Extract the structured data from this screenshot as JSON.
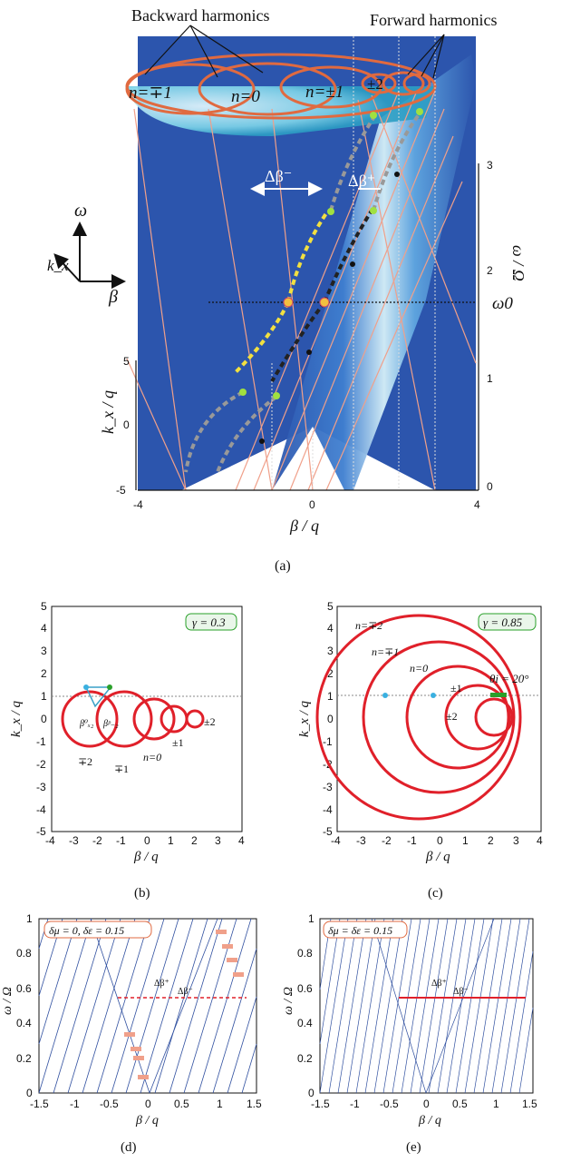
{
  "figure": {
    "panel_a": {
      "caption": "(a)",
      "top_labels": {
        "backward": "Backward harmonics",
        "forward": "Forward harmonics"
      },
      "ellipse_labels": [
        "n=∓1",
        "n=0",
        "n=±1",
        "±2"
      ],
      "delta_minus": "Δβ⁻",
      "delta_plus": "Δβ⁺",
      "axes_labels": {
        "omega": "ω",
        "kx": "k_x",
        "beta": "β"
      },
      "omega0_label": "ω0",
      "left_axis_label": "k_x / q",
      "right_axis_label": "ω / Ω",
      "bottom_axis_label": "β / q",
      "left_ticks": [
        "5",
        "0",
        "-5"
      ],
      "right_ticks": [
        "3",
        "2",
        "1",
        "0"
      ],
      "bottom_ticks": [
        "-4",
        "0",
        "4"
      ]
    },
    "panel_b": {
      "caption": "(b)",
      "gamma_label": "γ = 0.3",
      "x_label": "β / q",
      "y_label": "k_x / q",
      "x_ticks": [
        "-4",
        "-3",
        "-2",
        "-1",
        "0",
        "1",
        "2",
        "3",
        "4"
      ],
      "y_ticks": [
        "5",
        "4",
        "3",
        "2",
        "1",
        "0",
        "-1",
        "-2",
        "-3",
        "-4",
        "-5"
      ],
      "harmonic_labels": [
        "∓2",
        "∓1",
        "n=0",
        "±1",
        "±2"
      ],
      "beta_labels": [
        "β⁰ₓ₂",
        "βᵖ₋₂"
      ]
    },
    "panel_c": {
      "caption": "(c)",
      "gamma_label": "γ = 0.85",
      "x_label": "β / q",
      "y_label": "k_x / q",
      "x_ticks": [
        "-4",
        "-3",
        "-2",
        "-1",
        "0",
        "1",
        "2",
        "3",
        "4"
      ],
      "y_ticks": [
        "5",
        "4",
        "3",
        "2",
        "1",
        "0",
        "-1",
        "-2",
        "-3",
        "-4",
        "-5"
      ],
      "harmonic_labels": [
        "n=∓2",
        "n=∓1",
        "n=0",
        "±1",
        "±2"
      ],
      "theta_label": "θi = 20°"
    },
    "panel_d": {
      "caption": "(d)",
      "param_label": "δμ = 0, δε = 0.15",
      "x_label": "β / q",
      "y_label": "ω / Ω",
      "x_ticks": [
        "-1.5",
        "-1",
        "-0.5",
        "0",
        "0.5",
        "1",
        "1.5"
      ],
      "y_ticks": [
        "1",
        "0.8",
        "0.6",
        "0.4",
        "0.2",
        "0"
      ],
      "delta_labels": [
        "Δβ⁺",
        "Δβ⁻"
      ]
    },
    "panel_e": {
      "caption": "(e)",
      "param_label": "δμ = δε = 0.15",
      "x_label": "β / q",
      "y_label": "ω / Ω",
      "x_ticks": [
        "-1.5",
        "-1",
        "-0.5",
        "0",
        "0.5",
        "1",
        "1.5"
      ],
      "y_ticks": [
        "1",
        "0.8",
        "0.6",
        "0.4",
        "0.2",
        "0"
      ],
      "delta_labels": [
        "Δβ⁺",
        "Δβ⁻"
      ]
    },
    "colors": {
      "dark_blue": "#2a55b0",
      "light_blue": "#bfe6f4",
      "red": "#e0202a",
      "salmon": "#f0a08a",
      "green_box": "#2aa02a"
    }
  }
}
